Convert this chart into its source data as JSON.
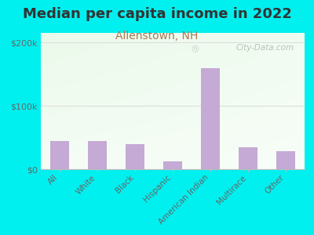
{
  "title": "Median per capita income in 2022",
  "subtitle": "Allenstown, NH",
  "categories": [
    "All",
    "White",
    "Black",
    "Hispanic",
    "American Indian",
    "Multirace",
    "Other"
  ],
  "values": [
    45000,
    45000,
    40000,
    12000,
    160000,
    35000,
    28000
  ],
  "bar_color": "#c4aad4",
  "background_outer": "#00f0f0",
  "title_color": "#333333",
  "subtitle_color": "#aa7755",
  "ytick_labels": [
    "$0",
    "$100k",
    "$200k"
  ],
  "ytick_values": [
    0,
    100000,
    200000
  ],
  "ylim": [
    0,
    215000
  ],
  "watermark": "City-Data.com",
  "title_fontsize": 13,
  "subtitle_fontsize": 10
}
